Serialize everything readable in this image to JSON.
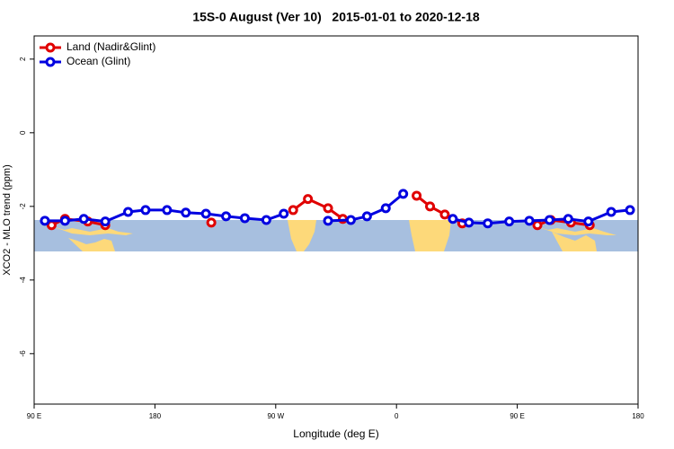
{
  "chart_data": {
    "type": "line",
    "title": "15S-0 August (Ver 10)   2015-01-01 to 2020-12-18",
    "xlabel": "Longitude (deg E)",
    "ylabel": "XCO2 - MLO trend (ppm)",
    "xlim": [
      90,
      540
    ],
    "ylim": [
      -7.37,
      2.63
    ],
    "xticks": [
      {
        "value": 90,
        "label": "90 E"
      },
      {
        "value": 180,
        "label": "180"
      },
      {
        "value": 270,
        "label": "90 W"
      },
      {
        "value": 360,
        "label": "0"
      },
      {
        "value": 450,
        "label": "90 E"
      },
      {
        "value": 540,
        "label": "180"
      }
    ],
    "yticks": [
      2,
      0,
      -2,
      -4,
      -6
    ],
    "legend": "top-left",
    "series": [
      {
        "name": "Land (Nadir&Glint)",
        "color": "#e00000",
        "x": [
          103,
          113,
          130,
          143,
          180,
          222,
          250,
          283,
          294,
          309,
          320,
          350,
          375,
          385,
          396,
          409,
          440,
          465,
          475,
          490,
          504
        ],
        "values": [
          -2.51,
          -2.34,
          -2.41,
          -2.51,
          null,
          -2.44,
          null,
          -2.1,
          -1.8,
          -2.05,
          -2.34,
          null,
          -1.71,
          -2.0,
          -2.22,
          -2.46,
          null,
          -2.51,
          -2.37,
          -2.44,
          -2.51
        ]
      },
      {
        "name": "Ocean (Glint)",
        "color": "#0000e0",
        "x": [
          98,
          113,
          127,
          143,
          160,
          173,
          189,
          203,
          218,
          233,
          247,
          263,
          276,
          292,
          309,
          326,
          338,
          352,
          365,
          385,
          402,
          414,
          428,
          444,
          459,
          474,
          488,
          503,
          520,
          534
        ],
        "values": [
          -2.39,
          -2.39,
          -2.34,
          -2.41,
          -2.15,
          -2.1,
          -2.1,
          -2.17,
          -2.2,
          -2.27,
          -2.32,
          -2.37,
          -2.2,
          null,
          -2.39,
          -2.37,
          -2.27,
          -2.05,
          -1.66,
          null,
          -2.34,
          -2.44,
          -2.46,
          -2.41,
          -2.39,
          -2.37,
          -2.34,
          -2.41,
          -2.15,
          -2.1
        ]
      }
    ]
  }
}
